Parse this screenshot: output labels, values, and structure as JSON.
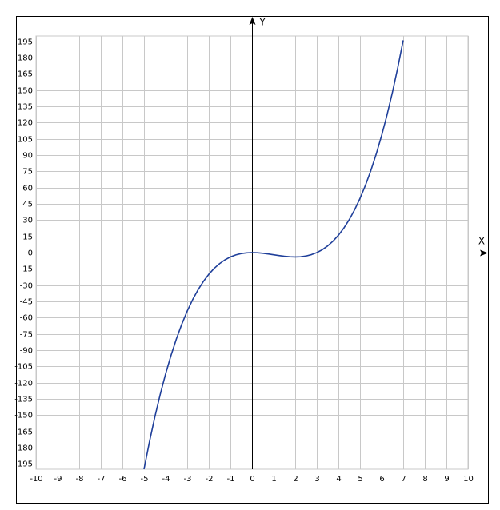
{
  "chart_data": {
    "type": "line",
    "x_label": "X",
    "y_label": "Y",
    "x": [
      -5,
      -4.75,
      -4.5,
      -4.25,
      -4,
      -3.75,
      -3.5,
      -3.25,
      -3,
      -2.75,
      -2.5,
      -2.25,
      -2,
      -1.75,
      -1.5,
      -1.25,
      -1,
      -0.75,
      -0.5,
      -0.25,
      0,
      0.25,
      0.5,
      0.75,
      1,
      1.25,
      1.5,
      1.75,
      2,
      2.25,
      2.5,
      2.75,
      3,
      3.25,
      3.5,
      3.75,
      4,
      4.25,
      4.5,
      4.75,
      5,
      5.25,
      5.5,
      5.75,
      6,
      6.25,
      6.5,
      6.75,
      7
    ],
    "series": [
      {
        "color": "#1f3f9a",
        "values": [
          -200,
          -174.859375,
          -151.875,
          -130.953125,
          -112,
          -94.921875,
          -79.625,
          -66.015625,
          -54,
          -43.484375,
          -34.375,
          -26.578125,
          -20,
          -14.546875,
          -10.125,
          -6.640625,
          -4,
          -2.109375,
          -0.875,
          -0.203125,
          0,
          -0.171875,
          -0.625,
          -1.265625,
          -2,
          -2.734375,
          -3.375,
          -3.828125,
          -4,
          -3.796875,
          -3.125,
          -1.890625,
          0,
          2.640625,
          6.125,
          10.546875,
          16,
          22.578125,
          30.375,
          39.484375,
          50,
          62.015625,
          75.625,
          90.921875,
          108,
          126.953125,
          147.875,
          170.859375,
          196
        ]
      }
    ],
    "xlim": [
      -10,
      10
    ],
    "ylim": [
      -200,
      200
    ],
    "xticks": [
      -10,
      -9,
      -8,
      -7,
      -6,
      -5,
      -4,
      -3,
      -2,
      -1,
      0,
      1,
      2,
      3,
      4,
      5,
      6,
      7,
      8,
      9,
      10
    ],
    "yticks": [
      -195,
      -180,
      -165,
      -150,
      -135,
      -120,
      -105,
      -90,
      -75,
      -60,
      -45,
      -30,
      -15,
      0,
      15,
      30,
      45,
      60,
      75,
      90,
      105,
      120,
      135,
      150,
      165,
      180,
      195
    ],
    "grid": true
  }
}
